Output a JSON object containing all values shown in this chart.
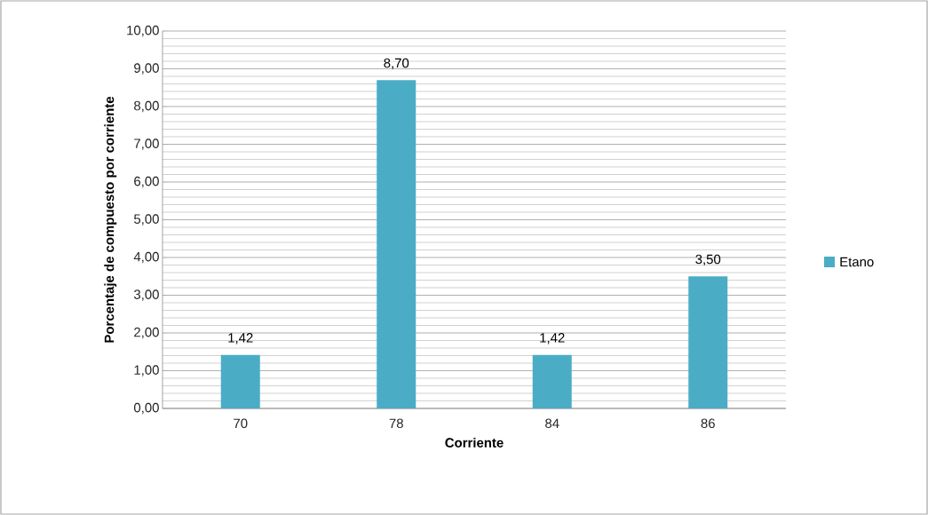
{
  "chart_data": {
    "type": "bar",
    "xlabel": "Corriente",
    "ylabel": "Porcentaje de compuesto por corriente",
    "categories": [
      "70",
      "78",
      "84",
      "86"
    ],
    "series": [
      {
        "name": "Etano",
        "color": "#4bacc6",
        "values": [
          1.42,
          8.7,
          1.42,
          3.5
        ],
        "value_labels": [
          "1,42",
          "8,70",
          "1,42",
          "3,50"
        ]
      }
    ],
    "ylim": [
      0,
      10
    ],
    "yticks": [
      {
        "value": 0,
        "label": "0,00"
      },
      {
        "value": 1,
        "label": "1,00"
      },
      {
        "value": 2,
        "label": "2,00"
      },
      {
        "value": 3,
        "label": "3,00"
      },
      {
        "value": 4,
        "label": "4,00"
      },
      {
        "value": 5,
        "label": "5,00"
      },
      {
        "value": 6,
        "label": "6,00"
      },
      {
        "value": 7,
        "label": "7,00"
      },
      {
        "value": 8,
        "label": "8,00"
      },
      {
        "value": 9,
        "label": "9,00"
      },
      {
        "value": 10,
        "label": "10,00"
      }
    ],
    "grid": "y",
    "legend": "right"
  }
}
